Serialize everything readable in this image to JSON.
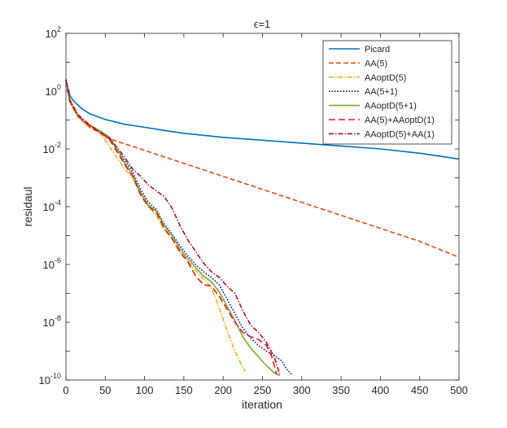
{
  "chart_data": {
    "type": "line",
    "title": "ϵ=1",
    "xlabel": "iteration",
    "ylabel": "residaul",
    "xlim": [
      0,
      500
    ],
    "ylim_log10": [
      -10,
      2
    ],
    "x_ticks": [
      0,
      50,
      100,
      150,
      200,
      250,
      300,
      350,
      400,
      450,
      500
    ],
    "y_ticks": [
      {
        "exp": 2,
        "base": "10",
        "power": "2"
      },
      {
        "exp": 0,
        "base": "10",
        "power": "0"
      },
      {
        "exp": -2,
        "base": "10",
        "power": "-2"
      },
      {
        "exp": -4,
        "base": "10",
        "power": "-4"
      },
      {
        "exp": -6,
        "base": "10",
        "power": "-6"
      },
      {
        "exp": -8,
        "base": "10",
        "power": "-8"
      },
      {
        "exp": -10,
        "base": "10",
        "power": "-10"
      }
    ],
    "legend_position": "top-right",
    "series": [
      {
        "name": "Picard",
        "color": "#0072BD",
        "dash": "solid",
        "points": [
          [
            0,
            0.4
          ],
          [
            5,
            -0.15
          ],
          [
            10,
            -0.35
          ],
          [
            20,
            -0.6
          ],
          [
            30,
            -0.78
          ],
          [
            50,
            -0.98
          ],
          [
            75,
            -1.15
          ],
          [
            100,
            -1.25
          ],
          [
            125,
            -1.36
          ],
          [
            150,
            -1.46
          ],
          [
            200,
            -1.6
          ],
          [
            250,
            -1.7
          ],
          [
            300,
            -1.8
          ],
          [
            350,
            -1.9
          ],
          [
            400,
            -2.0
          ],
          [
            450,
            -2.15
          ],
          [
            500,
            -2.35
          ]
        ]
      },
      {
        "name": "AA(5)",
        "color": "#D95319",
        "dash": "dashed",
        "points": [
          [
            0,
            0.4
          ],
          [
            5,
            -0.3
          ],
          [
            10,
            -0.6
          ],
          [
            20,
            -1.0
          ],
          [
            30,
            -1.25
          ],
          [
            40,
            -1.4
          ],
          [
            50,
            -1.6
          ],
          [
            100,
            -2.05
          ],
          [
            150,
            -2.5
          ],
          [
            200,
            -2.95
          ],
          [
            250,
            -3.4
          ],
          [
            300,
            -3.85
          ],
          [
            350,
            -4.3
          ],
          [
            400,
            -4.75
          ],
          [
            450,
            -5.2
          ],
          [
            500,
            -5.75
          ]
        ]
      },
      {
        "name": "AAoptD(5)",
        "color": "#EDB120",
        "dash": "dashdot",
        "points": [
          [
            0,
            0.4
          ],
          [
            5,
            -0.4
          ],
          [
            15,
            -0.9
          ],
          [
            25,
            -1.15
          ],
          [
            35,
            -1.3
          ],
          [
            45,
            -1.5
          ],
          [
            55,
            -1.9
          ],
          [
            65,
            -2.3
          ],
          [
            75,
            -2.7
          ],
          [
            85,
            -3.0
          ],
          [
            95,
            -3.55
          ],
          [
            105,
            -4.0
          ],
          [
            115,
            -4.3
          ],
          [
            125,
            -4.8
          ],
          [
            135,
            -5.1
          ],
          [
            145,
            -5.6
          ],
          [
            155,
            -5.9
          ],
          [
            165,
            -6.2
          ],
          [
            175,
            -6.5
          ],
          [
            185,
            -6.8
          ],
          [
            195,
            -7.5
          ],
          [
            205,
            -8.3
          ],
          [
            215,
            -9.0
          ],
          [
            222,
            -9.4
          ],
          [
            228,
            -9.7
          ]
        ]
      },
      {
        "name": "AA(5+1)",
        "color": "#0000CC",
        "dash": "dotted",
        "points": [
          [
            0,
            0.4
          ],
          [
            5,
            -0.35
          ],
          [
            15,
            -0.85
          ],
          [
            25,
            -1.1
          ],
          [
            35,
            -1.25
          ],
          [
            45,
            -1.4
          ],
          [
            55,
            -1.6
          ],
          [
            65,
            -2.0
          ],
          [
            75,
            -2.4
          ],
          [
            85,
            -2.8
          ],
          [
            95,
            -3.4
          ],
          [
            105,
            -3.85
          ],
          [
            115,
            -4.1
          ],
          [
            125,
            -4.6
          ],
          [
            135,
            -4.95
          ],
          [
            145,
            -5.35
          ],
          [
            155,
            -5.7
          ],
          [
            165,
            -6.0
          ],
          [
            175,
            -6.25
          ],
          [
            185,
            -6.45
          ],
          [
            195,
            -6.7
          ],
          [
            205,
            -7.2
          ],
          [
            215,
            -7.7
          ],
          [
            225,
            -8.2
          ],
          [
            235,
            -8.55
          ],
          [
            245,
            -8.8
          ],
          [
            255,
            -9.0
          ],
          [
            265,
            -9.15
          ],
          [
            275,
            -9.35
          ],
          [
            280,
            -9.6
          ],
          [
            287,
            -9.8
          ]
        ]
      },
      {
        "name": "AAoptD(5+1)",
        "color": "#77AC30",
        "dash": "solid",
        "points": [
          [
            0,
            0.4
          ],
          [
            5,
            -0.35
          ],
          [
            15,
            -0.85
          ],
          [
            25,
            -1.1
          ],
          [
            35,
            -1.25
          ],
          [
            45,
            -1.4
          ],
          [
            55,
            -1.6
          ],
          [
            65,
            -2.0
          ],
          [
            75,
            -2.5
          ],
          [
            85,
            -2.9
          ],
          [
            95,
            -3.5
          ],
          [
            105,
            -3.95
          ],
          [
            115,
            -4.15
          ],
          [
            125,
            -4.65
          ],
          [
            135,
            -5.0
          ],
          [
            145,
            -5.45
          ],
          [
            155,
            -5.8
          ],
          [
            165,
            -6.1
          ],
          [
            175,
            -6.4
          ],
          [
            185,
            -6.6
          ],
          [
            195,
            -6.95
          ],
          [
            205,
            -7.45
          ],
          [
            215,
            -7.95
          ],
          [
            225,
            -8.5
          ],
          [
            235,
            -8.9
          ],
          [
            245,
            -9.2
          ],
          [
            255,
            -9.5
          ],
          [
            265,
            -9.75
          ],
          [
            272,
            -9.85
          ]
        ]
      },
      {
        "name": "AA(5)+AAoptD(1)",
        "color": "#E0201B",
        "dash": "longdash",
        "points": [
          [
            0,
            0.4
          ],
          [
            5,
            -0.35
          ],
          [
            15,
            -0.85
          ],
          [
            25,
            -1.1
          ],
          [
            35,
            -1.3
          ],
          [
            45,
            -1.45
          ],
          [
            55,
            -1.65
          ],
          [
            65,
            -2.1
          ],
          [
            75,
            -2.55
          ],
          [
            85,
            -2.95
          ],
          [
            95,
            -3.6
          ],
          [
            105,
            -4.0
          ],
          [
            115,
            -4.2
          ],
          [
            125,
            -4.75
          ],
          [
            135,
            -5.1
          ],
          [
            145,
            -5.55
          ],
          [
            155,
            -5.9
          ],
          [
            165,
            -6.4
          ],
          [
            175,
            -6.7
          ],
          [
            185,
            -6.75
          ],
          [
            195,
            -7.1
          ],
          [
            205,
            -7.55
          ],
          [
            215,
            -8.0
          ],
          [
            225,
            -8.35
          ],
          [
            235,
            -8.5
          ],
          [
            245,
            -8.6
          ],
          [
            255,
            -8.8
          ],
          [
            262,
            -9.2
          ],
          [
            268,
            -9.8
          ]
        ]
      },
      {
        "name": "AAoptD(5)+AA(1)",
        "color": "#A2142F",
        "dash": "dashdot",
        "points": [
          [
            0,
            0.4
          ],
          [
            5,
            -0.3
          ],
          [
            15,
            -0.8
          ],
          [
            25,
            -1.05
          ],
          [
            35,
            -1.25
          ],
          [
            45,
            -1.45
          ],
          [
            55,
            -1.6
          ],
          [
            65,
            -1.95
          ],
          [
            75,
            -2.3
          ],
          [
            85,
            -2.7
          ],
          [
            95,
            -2.95
          ],
          [
            105,
            -3.25
          ],
          [
            115,
            -3.45
          ],
          [
            125,
            -3.65
          ],
          [
            135,
            -4.05
          ],
          [
            145,
            -4.65
          ],
          [
            155,
            -5.15
          ],
          [
            165,
            -5.55
          ],
          [
            175,
            -5.95
          ],
          [
            185,
            -6.25
          ],
          [
            195,
            -6.45
          ],
          [
            205,
            -6.75
          ],
          [
            215,
            -7.0
          ],
          [
            225,
            -7.6
          ],
          [
            235,
            -8.1
          ],
          [
            245,
            -8.35
          ],
          [
            255,
            -8.7
          ],
          [
            265,
            -9.2
          ],
          [
            272,
            -9.8
          ]
        ]
      }
    ]
  }
}
